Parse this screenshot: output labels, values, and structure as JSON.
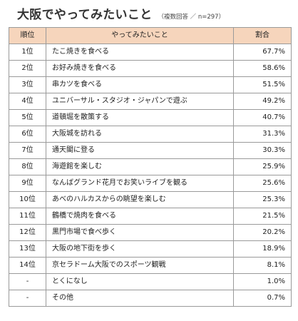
{
  "title": "大阪でやってみたいこと",
  "subtitle": "（複数回答 ／ n=297）",
  "table": {
    "headers": {
      "rank": "順位",
      "activity": "やってみたいこと",
      "percent": "割合"
    },
    "rows": [
      {
        "rank": "1位",
        "activity": "たこ焼きを食べる",
        "percent": "67.7%"
      },
      {
        "rank": "2位",
        "activity": "お好み焼きを食べる",
        "percent": "58.6%"
      },
      {
        "rank": "3位",
        "activity": "串カツを食べる",
        "percent": "51.5%"
      },
      {
        "rank": "4位",
        "activity": "ユニバーサル・スタジオ・ジャパンで遊ぶ",
        "percent": "49.2%"
      },
      {
        "rank": "5位",
        "activity": "道頓堀を散策する",
        "percent": "40.7%"
      },
      {
        "rank": "6位",
        "activity": "大阪城を訪れる",
        "percent": "31.3%"
      },
      {
        "rank": "7位",
        "activity": "通天閣に登る",
        "percent": "30.3%"
      },
      {
        "rank": "8位",
        "activity": "海遊館を楽しむ",
        "percent": "25.9%"
      },
      {
        "rank": "9位",
        "activity": "なんばグランド花月でお笑いライブを観る",
        "percent": "25.6%"
      },
      {
        "rank": "10位",
        "activity": "あべのハルカスからの眺望を楽しむ",
        "percent": "25.3%"
      },
      {
        "rank": "11位",
        "activity": "鶴橋で焼肉を食べる",
        "percent": "21.5%"
      },
      {
        "rank": "12位",
        "activity": "黒門市場で食べ歩く",
        "percent": "20.2%"
      },
      {
        "rank": "13位",
        "activity": "大阪の地下街を歩く",
        "percent": "18.9%"
      },
      {
        "rank": "14位",
        "activity": "京セラドーム大阪でのスポーツ観戦",
        "percent": "8.1%"
      },
      {
        "rank": "-",
        "activity": "とくになし",
        "percent": "1.0%"
      },
      {
        "rank": "-",
        "activity": "その他",
        "percent": "0.7%"
      }
    ]
  },
  "colors": {
    "header_bg": "#f6d5bc",
    "border": "#9a9a9a",
    "text": "#222222"
  }
}
